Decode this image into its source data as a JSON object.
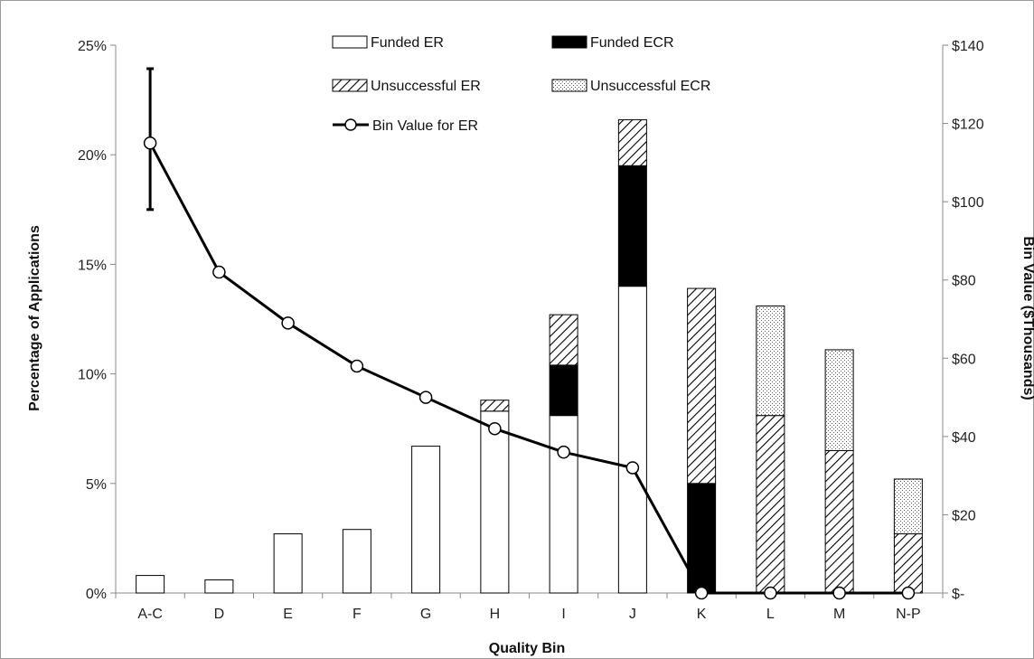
{
  "chart_data": {
    "type": "bar",
    "subtype": "stacked-bar-with-line",
    "categories": [
      "A-C",
      "D",
      "E",
      "F",
      "G",
      "H",
      "I",
      "J",
      "K",
      "L",
      "M",
      "N-P"
    ],
    "series": [
      {
        "name": "Funded ER",
        "axis": "left",
        "pattern": "white",
        "values": [
          0.8,
          0.6,
          2.7,
          2.9,
          6.7,
          8.3,
          8.1,
          14.0,
          0.0,
          0.0,
          0.0,
          0.0
        ]
      },
      {
        "name": "Funded ECR",
        "axis": "left",
        "pattern": "black",
        "values": [
          0.0,
          0.0,
          0.0,
          0.0,
          0.0,
          0.0,
          2.3,
          5.5,
          5.0,
          0.0,
          0.0,
          0.0
        ]
      },
      {
        "name": "Unsuccessful ER",
        "axis": "left",
        "pattern": "hatch",
        "values": [
          0.0,
          0.0,
          0.0,
          0.0,
          0.0,
          0.5,
          2.3,
          2.1,
          8.9,
          8.1,
          6.5,
          2.7
        ]
      },
      {
        "name": "Unsuccessful ECR",
        "axis": "left",
        "pattern": "dots",
        "values": [
          0.0,
          0.0,
          0.0,
          0.0,
          0.0,
          0.0,
          0.0,
          0.0,
          0.0,
          5.0,
          4.6,
          2.5
        ]
      },
      {
        "name": "Bin Value for ER",
        "axis": "right",
        "type": "line",
        "values": [
          115,
          82,
          69,
          58,
          50,
          42,
          36,
          32,
          0,
          0,
          0,
          0
        ],
        "error_bar": {
          "category": "A-C",
          "low": 98,
          "high": 134
        }
      }
    ],
    "xlabel": "Quality Bin",
    "ylabel": "Percentage of Applications",
    "y2label": "Bin Value ($Thousands)",
    "ylim": [
      0,
      25
    ],
    "y2lim": [
      0,
      140
    ],
    "yticks": [
      "0%",
      "5%",
      "10%",
      "15%",
      "20%",
      "25%"
    ],
    "y2ticks": [
      "$-",
      "$20",
      "$40",
      "$60",
      "$80",
      "$100",
      "$120",
      "$140"
    ],
    "legend_position": "top-center",
    "grid": false
  }
}
